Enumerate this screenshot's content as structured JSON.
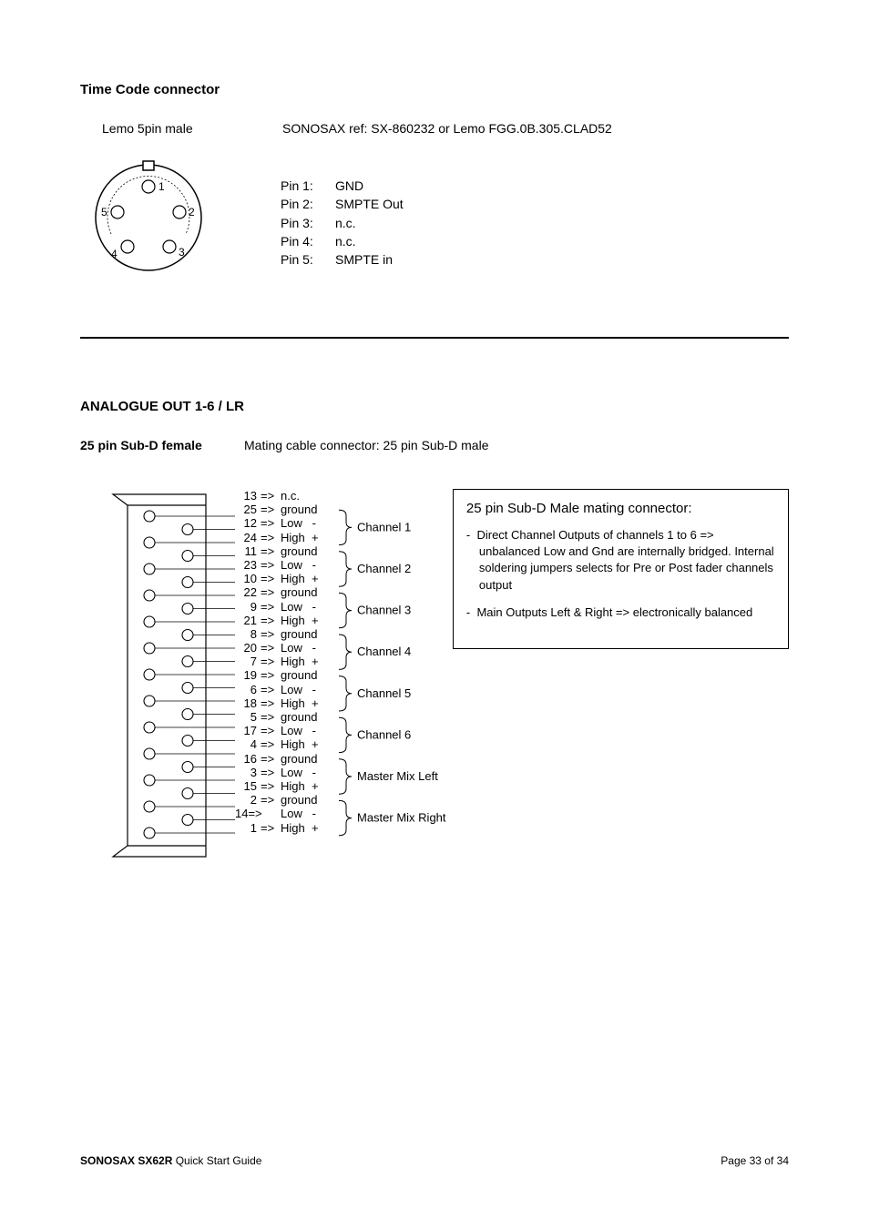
{
  "section1": {
    "title": "Time Code connector",
    "subtitle_left": "Lemo 5pin male",
    "subtitle_right": "SONOSAX ref: SX-860232 or Lemo  FGG.0B.305.CLAD52",
    "pins": [
      {
        "label": "Pin 1:",
        "value": "GND"
      },
      {
        "label": "Pin 2:",
        "value": "SMPTE Out"
      },
      {
        "label": "Pin 3:",
        "value": "n.c."
      },
      {
        "label": "Pin 4:",
        "value": "n.c."
      },
      {
        "label": "Pin 5:",
        "value": "SMPTE in"
      }
    ],
    "diagram": {
      "pin_labels": [
        "1",
        "2",
        "3",
        "4",
        "5"
      ]
    }
  },
  "section2": {
    "title": "ANALOGUE OUT 1-6 / LR",
    "header_left": "25 pin Sub-D female",
    "header_right": "Mating cable connector: 25 pin Sub-D male",
    "pins": [
      {
        "num": "13",
        "sig": "n.c."
      },
      {
        "num": "25",
        "sig": "ground"
      },
      {
        "num": "12",
        "sig": "Low   -"
      },
      {
        "num": "24",
        "sig": "High  +"
      },
      {
        "num": "11",
        "sig": "ground"
      },
      {
        "num": "23",
        "sig": "Low   -"
      },
      {
        "num": "10",
        "sig": "High  +"
      },
      {
        "num": "22",
        "sig": "ground"
      },
      {
        "num": "9",
        "sig": "Low   -"
      },
      {
        "num": "21",
        "sig": "High  +"
      },
      {
        "num": "8",
        "sig": "ground"
      },
      {
        "num": "20",
        "sig": "Low   -"
      },
      {
        "num": "7",
        "sig": "High  +"
      },
      {
        "num": "19",
        "sig": "ground"
      },
      {
        "num": "6",
        "sig": "Low   -"
      },
      {
        "num": "18",
        "sig": "High  +"
      },
      {
        "num": "5",
        "sig": "ground"
      },
      {
        "num": "17",
        "sig": "Low   -"
      },
      {
        "num": "4",
        "sig": "High  +"
      },
      {
        "num": "16",
        "sig": "ground"
      },
      {
        "num": "3",
        "sig": "Low   -"
      },
      {
        "num": "15",
        "sig": "High  +"
      },
      {
        "num": "2",
        "sig": "ground"
      },
      {
        "num": "14=>",
        "sig": "Low   -"
      },
      {
        "num": "1",
        "sig": "High  +"
      }
    ],
    "channels": [
      "Channel 1",
      "Channel 2",
      "Channel 3",
      "Channel 4",
      "Channel 5",
      "Channel 6",
      "Master Mix Left",
      "Master Mix Right"
    ],
    "arrow": "=>",
    "notes_title": "25 pin Sub-D Male mating connector:",
    "notes": [
      "Direct Channel Outputs of channels 1 to 6 => unbalanced Low and Gnd are internally bridged. Internal soldering jumpers selects for Pre or Post fader channels output",
      "Main Outputs Left & Right => electronically balanced"
    ]
  },
  "footer": {
    "product": "SONOSAX  SX62R",
    "doc": " Quick Start Guide",
    "page": "Page 33 of 34"
  },
  "colors": {
    "text": "#000000",
    "bg": "#ffffff"
  }
}
